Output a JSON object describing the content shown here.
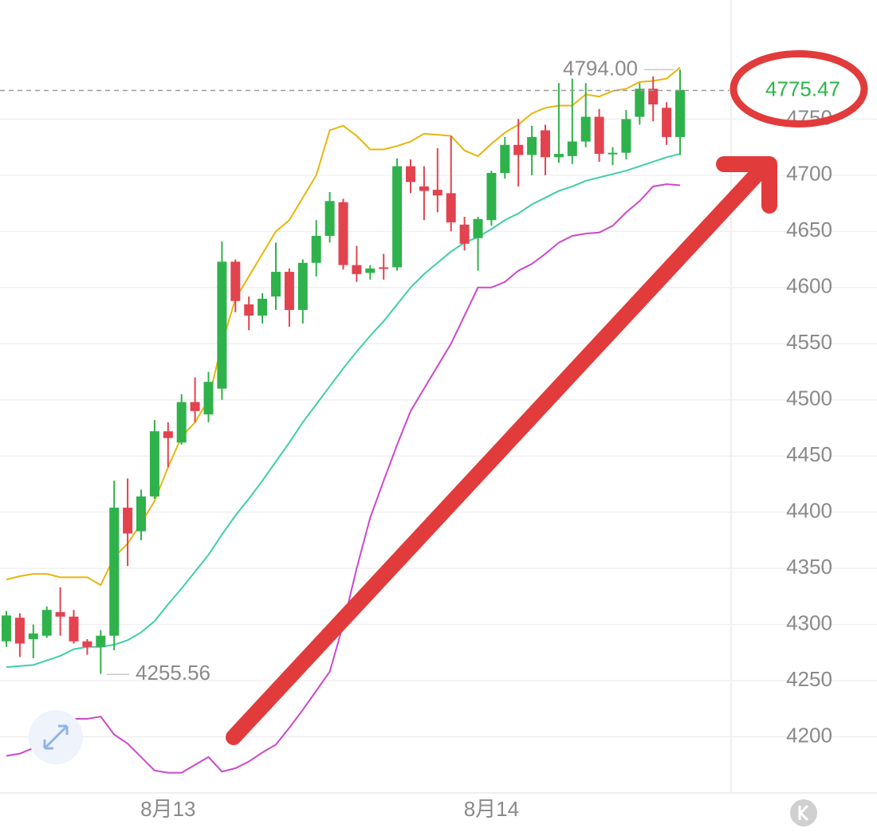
{
  "chart_data": {
    "type": "candlestick",
    "categories": [
      null,
      null,
      null,
      null,
      null,
      null,
      null,
      null,
      null,
      null,
      null,
      null,
      "8月13",
      null,
      null,
      null,
      null,
      null,
      null,
      null,
      null,
      null,
      null,
      null,
      null,
      null,
      null,
      null,
      null,
      null,
      null,
      null,
      null,
      null,
      null,
      null,
      "8月14",
      null,
      null,
      null,
      null,
      null,
      null,
      null,
      null,
      null,
      null,
      null,
      null,
      null,
      null
    ],
    "open": [
      4285,
      4306,
      4287,
      4290,
      4311,
      4307,
      4285,
      4280,
      4290,
      4404,
      4383,
      4414,
      4472,
      4462,
      4498,
      4487,
      4510,
      4623,
      4585,
      4575,
      4592,
      4614,
      4580,
      4622,
      4646,
      4676,
      4620,
      4613,
      4618,
      4618,
      4708,
      4690,
      4687,
      4684,
      4656,
      4644,
      4660,
      4702,
      4727,
      4718,
      4740,
      4716,
      4717,
      4730,
      4752,
      4719,
      4720,
      4752,
      4777,
      4760,
      4734
    ],
    "high": [
      4312,
      4310,
      4300,
      4316,
      4333,
      4313,
      4287,
      4295,
      4428,
      4430,
      4420,
      4482,
      4480,
      4505,
      4520,
      4525,
      4641,
      4625,
      4592,
      4595,
      4640,
      4617,
      4625,
      4660,
      4685,
      4679,
      4637,
      4620,
      4630,
      4715,
      4714,
      4708,
      4724,
      4735,
      4663,
      4663,
      4704,
      4734,
      4750,
      4744,
      4745,
      4782,
      4786,
      4782,
      4759,
      4725,
      4758,
      4782,
      4788,
      4765,
      4794
    ],
    "low": [
      4280,
      4271,
      4270,
      4288,
      4290,
      4283,
      4273,
      4256,
      4277,
      4352,
      4375,
      4412,
      4440,
      4460,
      4480,
      4480,
      4500,
      4578,
      4562,
      4568,
      4580,
      4565,
      4568,
      4610,
      4640,
      4616,
      4605,
      4607,
      4607,
      4615,
      4684,
      4660,
      4667,
      4650,
      4633,
      4615,
      4655,
      4697,
      4690,
      4700,
      4700,
      4711,
      4710,
      4725,
      4712,
      4709,
      4714,
      4745,
      4748,
      4727,
      4718
    ],
    "close": [
      4308,
      4283,
      4292,
      4313,
      4307,
      4285,
      4280,
      4290,
      4404,
      4381,
      4414,
      4472,
      4466,
      4498,
      4490,
      4516,
      4623,
      4588,
      4575,
      4590,
      4614,
      4580,
      4622,
      4646,
      4677,
      4620,
      4612,
      4617,
      4617,
      4708,
      4694,
      4686,
      4682,
      4658,
      4639,
      4661,
      4702,
      4727,
      4718,
      4734,
      4716,
      4719,
      4730,
      4752,
      4719,
      4720,
      4750,
      4777,
      4763,
      4734,
      4776
    ],
    "up_color": "#2fb24c",
    "down_color": "#e2434f",
    "series": [
      {
        "color": "#e9b50c",
        "values": [
          4340,
          4343,
          4345,
          4345,
          4342,
          4342,
          4342,
          4335,
          4360,
          4372,
          4390,
          4410,
          4440,
          4467,
          4480,
          4500,
          4550,
          4590,
          4610,
          4630,
          4650,
          4660,
          4680,
          4700,
          4740,
          4744,
          4735,
          4723,
          4723,
          4726,
          4730,
          4737,
          4736,
          4735,
          4722,
          4717,
          4728,
          4738,
          4745,
          4755,
          4760,
          4762,
          4762,
          4772,
          4770,
          4775,
          4777,
          4783,
          4784,
          4786,
          4796
        ]
      },
      {
        "color": "#3fcfa9",
        "values": [
          4262,
          4263,
          4264,
          4268,
          4272,
          4278,
          4280,
          4280,
          4282,
          4286,
          4293,
          4303,
          4318,
          4332,
          4347,
          4362,
          4380,
          4397,
          4412,
          4428,
          4445,
          4462,
          4480,
          4496,
          4512,
          4528,
          4543,
          4557,
          4570,
          4585,
          4600,
          4612,
          4622,
          4632,
          4640,
          4645,
          4652,
          4660,
          4666,
          4674,
          4680,
          4686,
          4690,
          4695,
          4698,
          4701,
          4704,
          4708,
          4712,
          4716,
          4719
        ]
      },
      {
        "color": "#cc48cc",
        "values": [
          4183,
          4185,
          4190,
          4205,
          4216,
          4216,
          4216,
          4218,
          4202,
          4194,
          4182,
          4170,
          4168,
          4168,
          4175,
          4182,
          4169,
          4172,
          4178,
          4186,
          4193,
          4208,
          4224,
          4241,
          4258,
          4300,
          4350,
          4395,
          4428,
          4460,
          4490,
          4510,
          4530,
          4550,
          4575,
          4600,
          4600,
          4605,
          4615,
          4621,
          4630,
          4640,
          4646,
          4648,
          4649,
          4655,
          4667,
          4677,
          4690,
          4692,
          4691
        ]
      }
    ],
    "ylim": [
      4150,
      4856
    ],
    "yticks": [
      4200,
      4250,
      4300,
      4350,
      4400,
      4450,
      4500,
      4550,
      4600,
      4650,
      4700,
      4750
    ],
    "grid": true,
    "high_marker": {
      "value": 4794,
      "label": "4794.00"
    },
    "low_marker": 4255.56,
    "last_price": 4775.47
  }
}
